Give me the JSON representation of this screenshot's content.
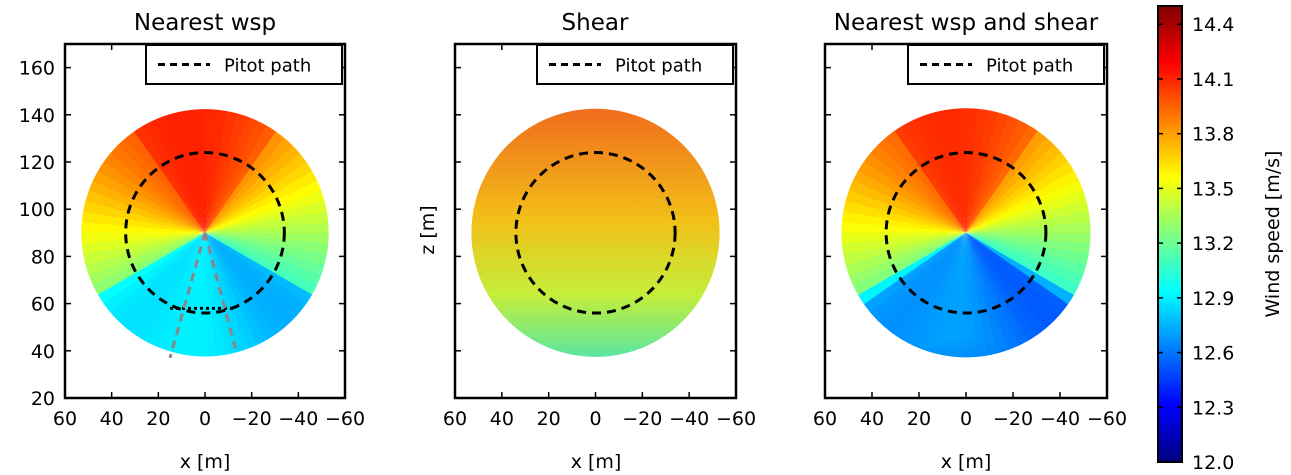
{
  "chart_data": [
    {
      "type": "heatmap",
      "title": "Nearest wsp",
      "xlabel": "x [m]",
      "ylabel": "",
      "xlim": [
        60,
        -60
      ],
      "ylim": [
        20,
        170
      ],
      "xticks": [
        "60",
        "40",
        "20",
        "0",
        "−20",
        "−40",
        "−60"
      ],
      "yticks": [
        "20",
        "40",
        "60",
        "80",
        "100",
        "120",
        "140",
        "160"
      ],
      "legend": {
        "label": "Pitot path",
        "placement": "top-right"
      },
      "rotor": {
        "center_x": 0,
        "center_z": 90,
        "radius": 53
      },
      "pitot_path": {
        "center_x": 0,
        "center_z": 90,
        "radius": 34
      },
      "extra_lines": [
        {
          "style": "dotted",
          "color": "#000000",
          "x": [
            15,
            -12
          ],
          "z": [
            58,
            58
          ]
        },
        {
          "style": "dashed",
          "color": "#888888",
          "x": [
            0,
            15
          ],
          "z": [
            90,
            37
          ]
        },
        {
          "style": "dashed",
          "color": "#888888",
          "x": [
            0,
            -13
          ],
          "z": [
            90,
            41
          ]
        }
      ]
    },
    {
      "type": "heatmap",
      "title": "Shear",
      "xlabel": "x [m]",
      "ylabel": "z [m]",
      "xlim": [
        60,
        -60
      ],
      "ylim": [
        20,
        170
      ],
      "xticks": [
        "60",
        "40",
        "20",
        "0",
        "−20",
        "−40",
        "−60"
      ],
      "yticks": [],
      "legend": {
        "label": "Pitot path",
        "placement": "top-right"
      },
      "rotor": {
        "center_x": 0,
        "center_z": 90,
        "radius": 53
      },
      "pitot_path": {
        "center_x": 0,
        "center_z": 90,
        "radius": 34
      }
    },
    {
      "type": "heatmap",
      "title": "Nearest wsp and shear",
      "xlabel": "x [m]",
      "ylabel": "",
      "xlim": [
        60,
        -60
      ],
      "ylim": [
        20,
        170
      ],
      "xticks": [
        "60",
        "40",
        "20",
        "0",
        "−20",
        "−40",
        "−60"
      ],
      "yticks": [],
      "legend": {
        "label": "Pitot path",
        "placement": "top-right"
      },
      "rotor": {
        "center_x": 0,
        "center_z": 90,
        "radius": 53
      },
      "pitot_path": {
        "center_x": 0,
        "center_z": 90,
        "radius": 34
      }
    }
  ],
  "colorbar": {
    "label": "Wind speed [m/s]",
    "range": [
      12.0,
      14.5
    ],
    "ticks": [
      "12.0",
      "12.3",
      "12.6",
      "12.9",
      "13.2",
      "13.5",
      "13.8",
      "14.1",
      "14.4"
    ],
    "colormap": "jet"
  }
}
